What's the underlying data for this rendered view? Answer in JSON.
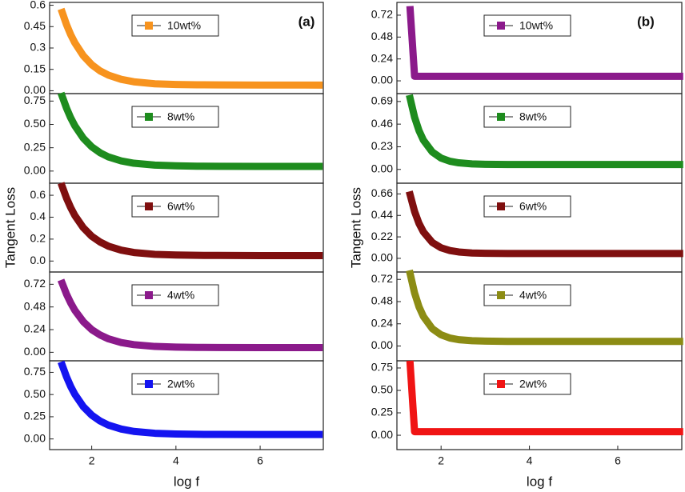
{
  "chart_data": [
    {
      "type": "line",
      "annotation": "(a)",
      "x": [
        1.3,
        1.4,
        1.5,
        1.6,
        1.8,
        2.0,
        2.2,
        2.4,
        2.7,
        3.0,
        3.5,
        4.0,
        4.5,
        5.0,
        6.0,
        7.4
      ],
      "series": [
        {
          "name": "10wt%",
          "color": "#f7931e",
          "values": [
            0.55,
            0.465,
            0.394,
            0.336,
            0.246,
            0.183,
            0.139,
            0.109,
            0.08,
            0.063,
            0.049,
            0.044,
            0.042,
            0.041,
            0.04,
            0.04
          ]
        }
      ],
      "xlim": [
        1,
        7.5
      ],
      "ylim": [
        -0.02,
        0.62
      ],
      "yticks": [
        {
          "value": 0,
          "label": "0.00"
        },
        0.15,
        0.3,
        0.45,
        0.6
      ]
    },
    {
      "type": "line",
      "x": [
        1.3,
        1.4,
        1.5,
        1.6,
        1.8,
        2.0,
        2.2,
        2.4,
        2.7,
        3.0,
        3.5,
        4.0,
        4.5,
        5.0,
        6.0,
        7.4
      ],
      "series": [
        {
          "name": "8wt%",
          "color": "#1e8c1e",
          "values": [
            0.8,
            0.676,
            0.571,
            0.485,
            0.352,
            0.26,
            0.196,
            0.151,
            0.109,
            0.084,
            0.064,
            0.056,
            0.052,
            0.051,
            0.05,
            0.05
          ]
        }
      ],
      "xlim": [
        1,
        7.5
      ],
      "ylim": [
        -0.13,
        0.83
      ],
      "yticks": [
        {
          "value": 0,
          "label": "0.00"
        },
        0.25,
        {
          "value": 0.5,
          "label": "0.50"
        },
        0.75
      ]
    },
    {
      "type": "line",
      "y_label": "Tangent Loss",
      "x": [
        1.3,
        1.4,
        1.5,
        1.6,
        1.8,
        2.0,
        2.2,
        2.4,
        2.7,
        3.0,
        3.5,
        4.0,
        4.5,
        5.0,
        6.0,
        7.4
      ],
      "series": [
        {
          "name": "6wt%",
          "color": "#7f0f0f",
          "values": [
            0.68,
            0.575,
            0.488,
            0.415,
            0.304,
            0.226,
            0.173,
            0.135,
            0.099,
            0.078,
            0.061,
            0.055,
            0.052,
            0.051,
            0.05,
            0.05
          ]
        }
      ],
      "xlim": [
        1,
        7.5
      ],
      "ylim": [
        -0.1,
        0.71
      ],
      "yticks": [
        {
          "value": 0,
          "label": "0.0"
        },
        0.2,
        0.4,
        0.6
      ]
    },
    {
      "type": "line",
      "x": [
        1.3,
        1.4,
        1.5,
        1.6,
        1.8,
        2.0,
        2.2,
        2.4,
        2.7,
        3.0,
        3.5,
        4.0,
        4.5,
        5.0,
        6.0,
        7.4
      ],
      "series": [
        {
          "name": "4wt%",
          "color": "#8b1a8b",
          "values": [
            0.73,
            0.617,
            0.523,
            0.444,
            0.324,
            0.24,
            0.183,
            0.142,
            0.103,
            0.081,
            0.062,
            0.055,
            0.052,
            0.051,
            0.05,
            0.05
          ]
        }
      ],
      "xlim": [
        1,
        7.5
      ],
      "ylim": [
        -0.09,
        0.85
      ],
      "yticks": [
        {
          "value": 0,
          "label": "0.00"
        },
        0.24,
        0.48,
        0.72
      ]
    },
    {
      "type": "line",
      "x_label": "log f",
      "x": [
        1.3,
        1.4,
        1.5,
        1.6,
        1.8,
        2.0,
        2.2,
        2.4,
        2.7,
        3.0,
        3.5,
        4.0,
        4.5,
        5.0,
        6.0,
        7.4
      ],
      "series": [
        {
          "name": "2wt%",
          "color": "#1414f0",
          "values": [
            0.83,
            0.701,
            0.592,
            0.502,
            0.364,
            0.268,
            0.202,
            0.155,
            0.111,
            0.085,
            0.064,
            0.056,
            0.052,
            0.051,
            0.05,
            0.05
          ]
        }
      ],
      "xlim": [
        1,
        7.5
      ],
      "xticks": [
        2,
        4,
        6
      ],
      "ylim": [
        -0.12,
        0.88
      ],
      "yticks": [
        {
          "value": 0,
          "label": "0.00"
        },
        0.25,
        {
          "value": 0.5,
          "label": "0.50"
        },
        0.75
      ]
    },
    {
      "type": "line",
      "annotation": "(b)",
      "x": [
        1.3,
        1.4,
        1.5,
        1.6,
        1.8,
        2.0,
        2.2,
        2.4,
        2.7,
        3.0,
        3.5,
        4.0,
        4.5,
        5.0,
        6.0,
        7.4
      ],
      "series": [
        {
          "name": "10wt%",
          "color": "#8b1a8b",
          "values": [
            0.78,
            0.05,
            0.05,
            0.05,
            0.05,
            0.05,
            0.05,
            0.05,
            0.05,
            0.05,
            0.05,
            0.05,
            0.05,
            0.05,
            0.05,
            0.05
          ]
        }
      ],
      "xlim": [
        1,
        7.45
      ],
      "ylim": [
        -0.14,
        0.86
      ],
      "yticks": [
        {
          "value": 0,
          "label": "0.00"
        },
        0.24,
        0.48,
        0.72
      ]
    },
    {
      "type": "line",
      "x": [
        1.3,
        1.4,
        1.5,
        1.6,
        1.8,
        2.0,
        2.2,
        2.4,
        2.7,
        3.0,
        3.5,
        4.0,
        4.5,
        5.0,
        6.0,
        7.4
      ],
      "series": [
        {
          "name": "8wt%",
          "color": "#1e8c1e",
          "values": [
            0.72,
            0.53,
            0.394,
            0.297,
            0.177,
            0.115,
            0.083,
            0.067,
            0.056,
            0.052,
            0.05,
            0.05,
            0.05,
            0.05,
            0.05,
            0.05
          ]
        }
      ],
      "xlim": [
        1,
        7.45
      ],
      "ylim": [
        -0.14,
        0.77
      ],
      "yticks": [
        {
          "value": 0,
          "label": "0.00"
        },
        0.23,
        0.46,
        0.69
      ]
    },
    {
      "type": "line",
      "y_label": "Tangent Loss",
      "x": [
        1.3,
        1.4,
        1.5,
        1.6,
        1.8,
        2.0,
        2.2,
        2.4,
        2.7,
        3.0,
        3.5,
        4.0,
        4.5,
        5.0,
        6.0,
        7.4
      ],
      "series": [
        {
          "name": "6wt%",
          "color": "#7f0f0f",
          "values": [
            0.65,
            0.48,
            0.358,
            0.271,
            0.163,
            0.108,
            0.08,
            0.065,
            0.055,
            0.052,
            0.05,
            0.05,
            0.05,
            0.05,
            0.05,
            0.05
          ]
        }
      ],
      "xlim": [
        1,
        7.45
      ],
      "ylim": [
        -0.14,
        0.77
      ],
      "yticks": [
        {
          "value": 0,
          "label": "0.00"
        },
        0.22,
        0.44,
        0.66
      ]
    },
    {
      "type": "line",
      "x": [
        1.3,
        1.4,
        1.5,
        1.6,
        1.8,
        2.0,
        2.2,
        2.4,
        2.7,
        3.0,
        3.5,
        4.0,
        4.5,
        5.0,
        6.0,
        7.4
      ],
      "series": [
        {
          "name": "4wt%",
          "color": "#8c8c14",
          "values": [
            0.78,
            0.573,
            0.424,
            0.319,
            0.188,
            0.121,
            0.086,
            0.068,
            0.057,
            0.053,
            0.05,
            0.05,
            0.05,
            0.05,
            0.05,
            0.05
          ]
        }
      ],
      "xlim": [
        1,
        7.45
      ],
      "ylim": [
        -0.16,
        0.8
      ],
      "yticks": [
        {
          "value": 0,
          "label": "0.00"
        },
        0.24,
        0.48,
        0.72
      ]
    },
    {
      "type": "line",
      "x_label": "log f",
      "x": [
        1.3,
        1.4,
        1.5,
        1.6,
        1.8,
        2.0,
        2.2,
        2.4,
        2.7,
        3.0,
        3.5,
        4.0,
        4.5,
        5.0,
        6.0,
        7.4
      ],
      "series": [
        {
          "name": "2wt%",
          "color": "#f01414",
          "values": [
            0.79,
            0.04,
            0.04,
            0.04,
            0.04,
            0.04,
            0.04,
            0.04,
            0.04,
            0.04,
            0.04,
            0.04,
            0.04,
            0.04,
            0.04,
            0.04
          ]
        }
      ],
      "xlim": [
        1,
        7.45
      ],
      "xticks": [
        2,
        4,
        6
      ],
      "ylim": [
        -0.16,
        0.83
      ],
      "yticks": [
        {
          "value": 0,
          "label": "0.00"
        },
        0.25,
        {
          "value": 0.5,
          "label": "0.50"
        },
        0.75
      ]
    }
  ]
}
